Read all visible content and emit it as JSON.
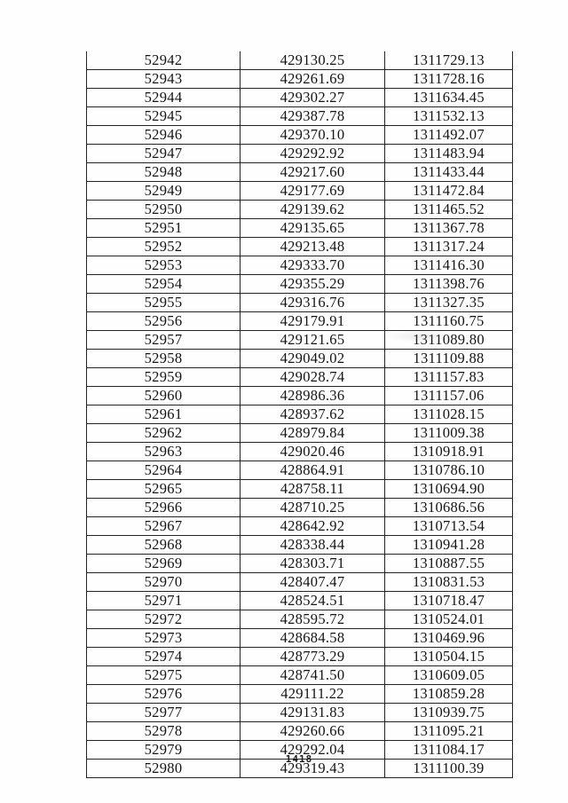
{
  "table": {
    "rows": [
      [
        "52942",
        "429130.25",
        "1311729.13"
      ],
      [
        "52943",
        "429261.69",
        "1311728.16"
      ],
      [
        "52944",
        "429302.27",
        "1311634.45"
      ],
      [
        "52945",
        "429387.78",
        "1311532.13"
      ],
      [
        "52946",
        "429370.10",
        "1311492.07"
      ],
      [
        "52947",
        "429292.92",
        "1311483.94"
      ],
      [
        "52948",
        "429217.60",
        "1311433.44"
      ],
      [
        "52949",
        "429177.69",
        "1311472.84"
      ],
      [
        "52950",
        "429139.62",
        "1311465.52"
      ],
      [
        "52951",
        "429135.65",
        "1311367.78"
      ],
      [
        "52952",
        "429213.48",
        "1311317.24"
      ],
      [
        "52953",
        "429333.70",
        "1311416.30"
      ],
      [
        "52954",
        "429355.29",
        "1311398.76"
      ],
      [
        "52955",
        "429316.76",
        "1311327.35"
      ],
      [
        "52956",
        "429179.91",
        "1311160.75"
      ],
      [
        "52957",
        "429121.65",
        "1311089.80"
      ],
      [
        "52958",
        "429049.02",
        "1311109.88"
      ],
      [
        "52959",
        "429028.74",
        "1311157.83"
      ],
      [
        "52960",
        "428986.36",
        "1311157.06"
      ],
      [
        "52961",
        "428937.62",
        "1311028.15"
      ],
      [
        "52962",
        "428979.84",
        "1311009.38"
      ],
      [
        "52963",
        "429020.46",
        "1310918.91"
      ],
      [
        "52964",
        "428864.91",
        "1310786.10"
      ],
      [
        "52965",
        "428758.11",
        "1310694.90"
      ],
      [
        "52966",
        "428710.25",
        "1310686.56"
      ],
      [
        "52967",
        "428642.92",
        "1310713.54"
      ],
      [
        "52968",
        "428338.44",
        "1310941.28"
      ],
      [
        "52969",
        "428303.71",
        "1310887.55"
      ],
      [
        "52970",
        "428407.47",
        "1310831.53"
      ],
      [
        "52971",
        "428524.51",
        "1310718.47"
      ],
      [
        "52972",
        "428595.72",
        "1310524.01"
      ],
      [
        "52973",
        "428684.58",
        "1310469.96"
      ],
      [
        "52974",
        "428773.29",
        "1310504.15"
      ],
      [
        "52975",
        "428741.50",
        "1310609.05"
      ],
      [
        "52976",
        "429111.22",
        "1310859.28"
      ],
      [
        "52977",
        "429131.83",
        "1310939.75"
      ],
      [
        "52978",
        "429260.66",
        "1311095.21"
      ],
      [
        "52979",
        "429292.04",
        "1311084.17"
      ],
      [
        "52980",
        "429319.43",
        "1311100.39"
      ]
    ]
  },
  "footer": {
    "page_number": "1418"
  }
}
